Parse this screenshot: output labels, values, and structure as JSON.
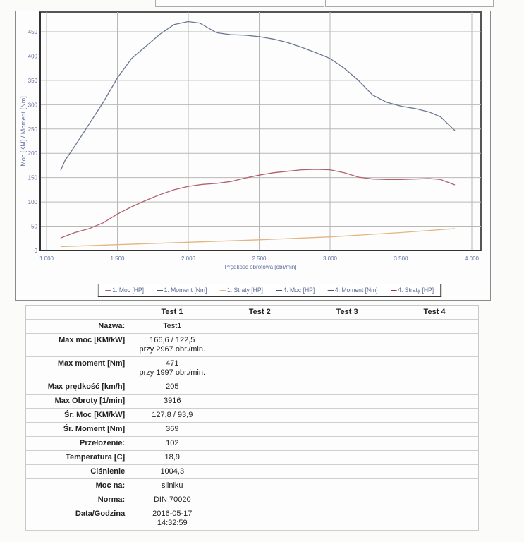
{
  "chart_data": {
    "type": "line",
    "xlabel": "Prędkość obrotowa [obr/min]",
    "ylabel": "Moc [KM] / Moment [Nm]",
    "xlim": [
      1000,
      4000
    ],
    "ylim": [
      0,
      480
    ],
    "x_ticks": [
      "1.000",
      "1.500",
      "2.000",
      "2.500",
      "3.000",
      "3.500",
      "4.000"
    ],
    "x_tick_values": [
      1000,
      1500,
      2000,
      2500,
      3000,
      3500,
      4000
    ],
    "y_ticks": [
      "0",
      "50",
      "100",
      "150",
      "200",
      "250",
      "300",
      "350",
      "400",
      "450"
    ],
    "y_tick_values": [
      0,
      50,
      100,
      150,
      200,
      250,
      300,
      350,
      400,
      450
    ],
    "grid": true,
    "legend_position": "bottom",
    "legend": [
      "1: Moc [HP]",
      "1: Moment [Nm]",
      "1: Straty [HP]",
      "4: Moc [HP]",
      "4: Moment [Nm]",
      "4: Straty [HP]"
    ],
    "legend_colors": [
      "#b2606e",
      "#4a5470",
      "#e2b583",
      "#4a5470",
      "#4a5470",
      "#9a3040"
    ],
    "series": [
      {
        "name": "1: Moment [Nm]",
        "color": "#6b7690",
        "x": [
          1100,
          1130,
          1200,
          1300,
          1400,
          1500,
          1600,
          1700,
          1800,
          1900,
          2000,
          2080,
          2200,
          2300,
          2400,
          2500,
          2600,
          2700,
          2800,
          2900,
          3000,
          3100,
          3200,
          3300,
          3400,
          3500,
          3600,
          3700,
          3780,
          3850,
          3880
        ],
        "y": [
          165,
          185,
          215,
          260,
          305,
          355,
          395,
          420,
          445,
          465,
          471,
          468,
          448,
          444,
          443,
          440,
          435,
          428,
          418,
          407,
          395,
          375,
          350,
          320,
          305,
          297,
          292,
          285,
          275,
          255,
          247
        ]
      },
      {
        "name": "1: Moc [HP]",
        "color": "#b2606e",
        "x": [
          1100,
          1200,
          1300,
          1400,
          1500,
          1600,
          1700,
          1800,
          1900,
          2000,
          2100,
          2200,
          2300,
          2400,
          2500,
          2600,
          2700,
          2800,
          2900,
          3000,
          3100,
          3200,
          3300,
          3400,
          3500,
          3600,
          3700,
          3780,
          3880
        ],
        "y": [
          26,
          37,
          45,
          57,
          75,
          90,
          103,
          115,
          125,
          132,
          136,
          138,
          142,
          149,
          155,
          160,
          163,
          166,
          167,
          166,
          160,
          151,
          147,
          146,
          146,
          147,
          148,
          146,
          135
        ]
      },
      {
        "name": "1: Straty [HP]",
        "color": "#e2b583",
        "x": [
          1100,
          1200,
          1500,
          2000,
          2500,
          3000,
          3500,
          3880
        ],
        "y": [
          8,
          9,
          12,
          17,
          22,
          28,
          37,
          45
        ]
      }
    ]
  },
  "table": {
    "headers": [
      "Test 1",
      "Test 2",
      "Test 3",
      "Test 4"
    ],
    "rows": [
      {
        "label": "Nazwa:",
        "value": "Test1"
      },
      {
        "label": "Max moc [KM/kW]",
        "value": "166,6 / 122,5",
        "value2": "przy 2967 obr./min."
      },
      {
        "label": "Max moment [Nm]",
        "value": "471",
        "value2": "przy 1997 obr./min."
      },
      {
        "label": "Max prędkość [km/h]",
        "value": "205"
      },
      {
        "label": "Max Obroty [1/min]",
        "value": "3916"
      },
      {
        "label": "Śr. Moc [KM/kW]",
        "value": "127,8 / 93,9"
      },
      {
        "label": "Śr. Moment [Nm]",
        "value": "369"
      },
      {
        "label": "Przełożenie:",
        "value": "102"
      },
      {
        "label": "Temperatura [C]",
        "value": "18,9"
      },
      {
        "label": "Ciśnienie",
        "value": "1004,3"
      },
      {
        "label": "Moc na:",
        "value": "silniku"
      },
      {
        "label": "Norma:",
        "value": "DIN 70020"
      },
      {
        "label": "Data/Godzina",
        "value": "2016-05-17",
        "value2": "14:32:59"
      }
    ]
  }
}
